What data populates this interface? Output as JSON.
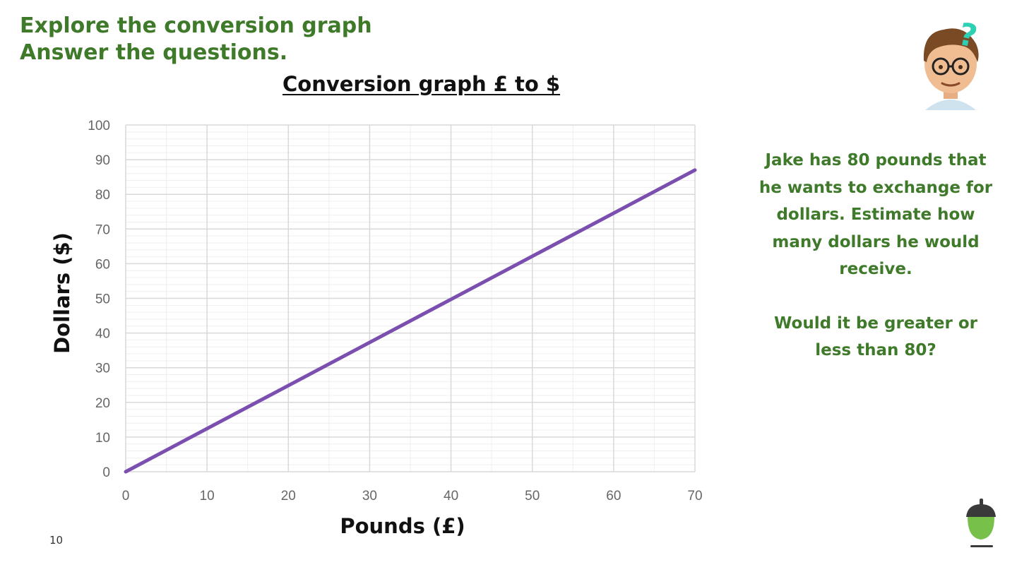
{
  "heading": {
    "line1": "Explore the conversion graph",
    "line2": "Answer the questions."
  },
  "question": {
    "part1": "Jake has 80 pounds that he wants to exchange for dollars. Estimate how many dollars he would receive.",
    "part2": "Would it be greater or less than 80?"
  },
  "page_number": "10",
  "icons": {
    "avatar": "thinking-avatar-icon",
    "logo": "acorn-icon"
  },
  "colors": {
    "heading": "#3f7a2a",
    "line": "#7b4fb0",
    "grid_major": "#d9d9d9",
    "grid_minor": "#efefef"
  },
  "chart_data": {
    "type": "line",
    "title": "Conversion graph £ to $",
    "xlabel": "Pounds (£)",
    "ylabel": "Dollars ($)",
    "xlim": [
      0,
      70
    ],
    "ylim": [
      0,
      100
    ],
    "x_ticks": [
      "0",
      "10",
      "20",
      "30",
      "40",
      "50",
      "60",
      "70"
    ],
    "y_ticks": [
      "0",
      "10",
      "20",
      "30",
      "40",
      "50",
      "60",
      "70",
      "80",
      "90",
      "100"
    ],
    "grid": true,
    "legend": "none",
    "series": [
      {
        "x": [
          0,
          70
        ],
        "y": [
          0,
          87
        ]
      }
    ]
  }
}
